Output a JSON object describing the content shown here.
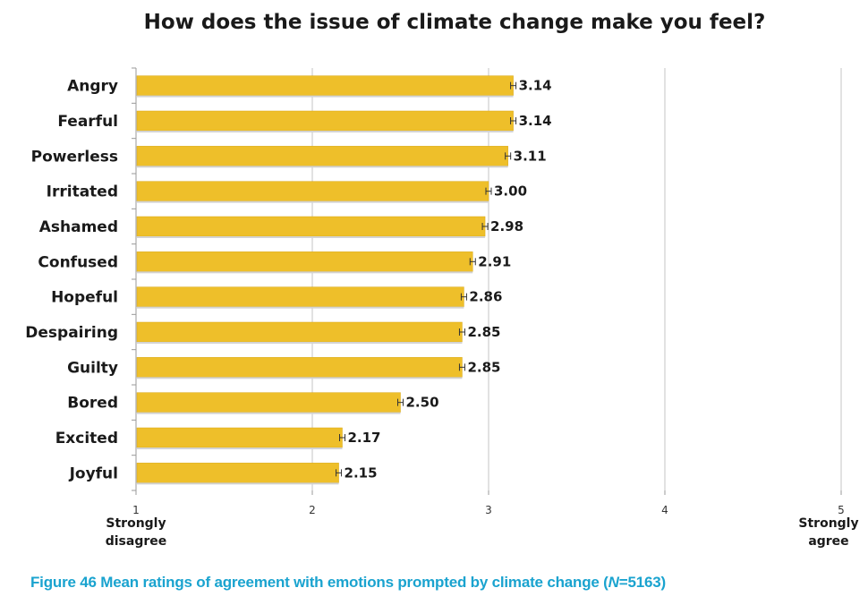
{
  "chart_data": {
    "type": "bar",
    "orientation": "horizontal",
    "title": "How does the issue of climate change make you feel?",
    "categories": [
      "Angry",
      "Fearful",
      "Powerless",
      "Irritated",
      "Ashamed",
      "Confused",
      "Hopeful",
      "Despairing",
      "Guilty",
      "Bored",
      "Excited",
      "Joyful"
    ],
    "values": [
      3.14,
      3.14,
      3.11,
      3.0,
      2.98,
      2.91,
      2.86,
      2.85,
      2.85,
      2.5,
      2.17,
      2.15
    ],
    "value_labels": [
      "3.14",
      "3.14",
      "3.11",
      "3.00",
      "2.98",
      "2.91",
      "2.86",
      "2.85",
      "2.85",
      "2.50",
      "2.17",
      "2.15"
    ],
    "error_bars": true,
    "xlim": [
      1,
      5
    ],
    "xticks": [
      "1",
      "2",
      "3",
      "4",
      "5"
    ],
    "x_anchor_left": [
      "Strongly",
      "disagree"
    ],
    "x_anchor_right": [
      "Strongly",
      "agree"
    ],
    "grid": "vertical",
    "bar_color": "#EEBF2A",
    "bar_edge_color": "#D9A817"
  },
  "caption": {
    "prefix": "Figure 46 Mean ratings of agreement with emotions prompted by climate change (",
    "n_symbol": "N",
    "suffix": "=5163)",
    "color": "#1AA3CF"
  }
}
